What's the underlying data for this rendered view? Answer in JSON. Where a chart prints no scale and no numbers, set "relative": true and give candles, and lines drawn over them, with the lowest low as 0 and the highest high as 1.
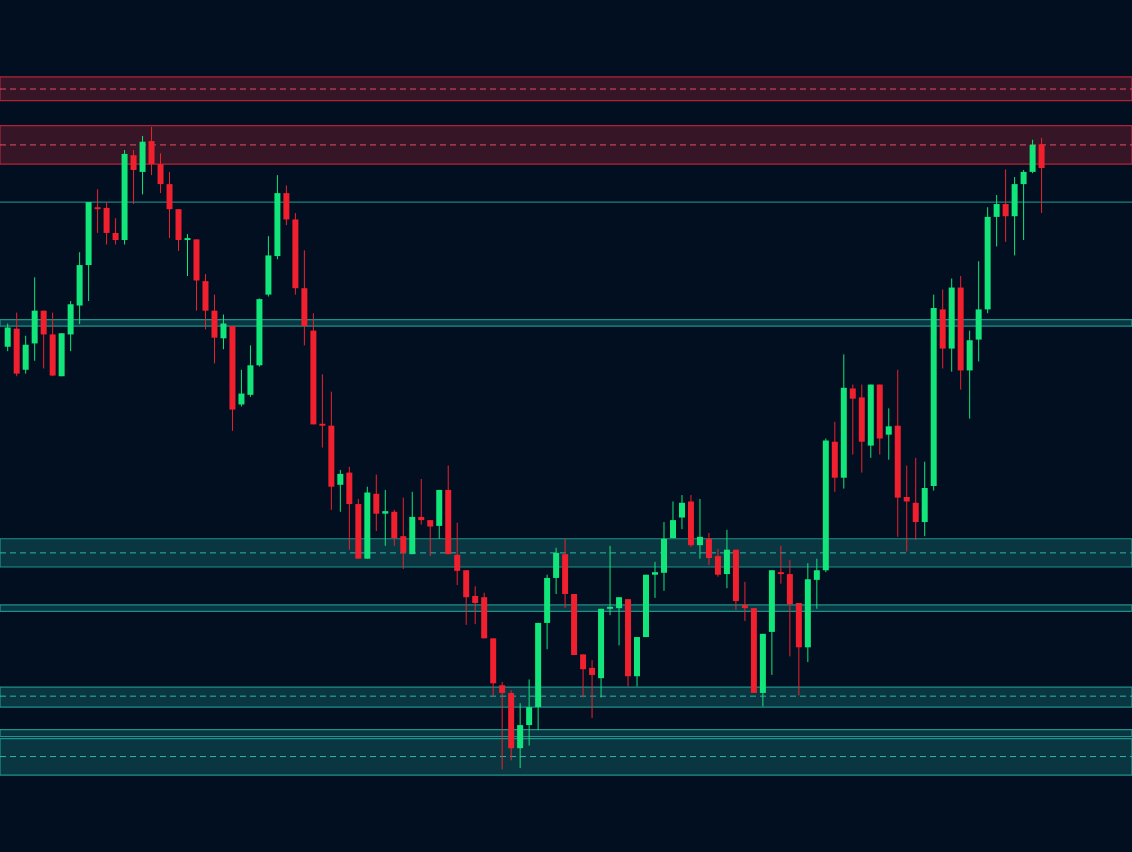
{
  "chart_data": {
    "type": "candlestick",
    "relative": true,
    "categories": [
      null,
      null,
      null,
      null,
      null,
      null,
      null,
      null,
      null,
      null,
      null,
      null,
      null,
      null,
      null,
      null,
      null,
      null,
      null,
      null,
      null,
      null,
      null,
      null,
      null,
      null,
      null,
      null,
      null,
      null,
      null,
      null,
      null,
      null,
      null,
      null,
      null,
      null,
      null,
      null,
      null,
      null,
      null,
      null,
      null,
      null,
      null,
      null,
      null,
      null,
      null,
      null,
      null,
      null,
      null,
      null,
      null,
      null,
      null,
      null,
      null,
      null,
      null,
      null,
      null,
      null,
      null,
      null,
      null,
      null,
      null,
      null,
      null,
      null,
      null,
      null,
      null,
      null,
      null,
      null,
      null,
      null,
      null,
      null,
      null,
      null,
      null,
      null,
      null,
      null,
      null,
      null,
      null,
      null,
      null,
      null,
      null,
      null,
      null,
      null,
      null,
      null,
      null,
      null,
      null,
      null,
      null,
      null,
      null,
      null,
      null,
      null,
      null,
      null,
      null,
      null
    ],
    "ohlc": [
      [
        0.658,
        0.694,
        0.651,
        0.688
      ],
      [
        0.686,
        0.711,
        0.612,
        0.616
      ],
      [
        0.622,
        0.675,
        0.616,
        0.661
      ],
      [
        0.663,
        0.766,
        0.636,
        0.714
      ],
      [
        0.714,
        0.714,
        0.624,
        0.677
      ],
      [
        0.677,
        0.711,
        0.612,
        0.613
      ],
      [
        0.612,
        0.679,
        0.612,
        0.679
      ],
      [
        0.677,
        0.729,
        0.651,
        0.724
      ],
      [
        0.722,
        0.805,
        0.693,
        0.785
      ],
      [
        0.785,
        0.883,
        0.729,
        0.883
      ],
      [
        0.875,
        0.903,
        0.835,
        0.872
      ],
      [
        0.874,
        0.883,
        0.817,
        0.835
      ],
      [
        0.835,
        0.858,
        0.817,
        0.824
      ],
      [
        0.824,
        0.964,
        0.817,
        0.958
      ],
      [
        0.956,
        0.964,
        0.88,
        0.933
      ],
      [
        0.93,
        0.986,
        0.895,
        0.977
      ],
      [
        0.978,
        1,
        0.925,
        0.942
      ],
      [
        0.942,
        0.959,
        0.897,
        0.911
      ],
      [
        0.911,
        0.93,
        0.827,
        0.872
      ],
      [
        0.872,
        0.872,
        0.807,
        0.824
      ],
      [
        0.824,
        0.833,
        0.768,
        0.827
      ],
      [
        0.825,
        0.825,
        0.714,
        0.761
      ],
      [
        0.76,
        0.771,
        0.685,
        0.714
      ],
      [
        0.714,
        0.739,
        0.632,
        0.672
      ],
      [
        0.671,
        0.708,
        0.654,
        0.694
      ],
      [
        0.69,
        0.69,
        0.527,
        0.56
      ],
      [
        0.568,
        0.622,
        0.565,
        0.585
      ],
      [
        0.583,
        0.66,
        0.58,
        0.629
      ],
      [
        0.629,
        0.733,
        0.627,
        0.732
      ],
      [
        0.739,
        0.83,
        0.736,
        0.8
      ],
      [
        0.799,
        0.925,
        0.794,
        0.897
      ],
      [
        0.897,
        0.909,
        0.847,
        0.856
      ],
      [
        0.856,
        0.866,
        0.739,
        0.749
      ],
      [
        0.749,
        0.808,
        0.66,
        0.69
      ],
      [
        0.683,
        0.71,
        0.537,
        0.537
      ],
      [
        0.538,
        0.615,
        0.501,
        0.535
      ],
      [
        0.535,
        0.588,
        0.404,
        0.44
      ],
      [
        0.443,
        0.466,
        0.401,
        0.46
      ],
      [
        0.462,
        0.471,
        0.342,
        0.413
      ],
      [
        0.413,
        0.421,
        0.328,
        0.328
      ],
      [
        0.328,
        0.44,
        0.328,
        0.431
      ],
      [
        0.429,
        0.459,
        0.371,
        0.398
      ],
      [
        0.398,
        0.435,
        0.348,
        0.402
      ],
      [
        0.401,
        0.404,
        0.348,
        0.36
      ],
      [
        0.363,
        0.423,
        0.312,
        0.337
      ],
      [
        0.335,
        0.432,
        0.335,
        0.393
      ],
      [
        0.393,
        0.452,
        0.381,
        0.388
      ],
      [
        0.388,
        0.388,
        0.332,
        0.378
      ],
      [
        0.379,
        0.435,
        0.359,
        0.435
      ],
      [
        0.435,
        0.473,
        0.335,
        0.335
      ],
      [
        0.334,
        0.384,
        0.287,
        0.309
      ],
      [
        0.31,
        0.31,
        0.225,
        0.268
      ],
      [
        0.27,
        0.285,
        0.226,
        0.259
      ],
      [
        0.268,
        0.275,
        0.204,
        0.204
      ],
      [
        0.204,
        0.204,
        0.114,
        0.134
      ],
      [
        0.131,
        0.136,
        0,
        0.119
      ],
      [
        0.119,
        0.123,
        0.014,
        0.033
      ],
      [
        0.033,
        0.103,
        0.002,
        0.069
      ],
      [
        0.069,
        0.14,
        0.037,
        0.097
      ],
      [
        0.097,
        0.228,
        0.061,
        0.228
      ],
      [
        0.228,
        0.303,
        0.187,
        0.298
      ],
      [
        0.298,
        0.345,
        0.273,
        0.337
      ],
      [
        0.335,
        0.359,
        0.251,
        0.273
      ],
      [
        0.273,
        0.273,
        0.178,
        0.178
      ],
      [
        0.179,
        0.179,
        0.112,
        0.156
      ],
      [
        0.158,
        0.17,
        0.08,
        0.147
      ],
      [
        0.142,
        0.25,
        0.112,
        0.25
      ],
      [
        0.25,
        0.348,
        0.24,
        0.253
      ],
      [
        0.251,
        0.268,
        0.193,
        0.268
      ],
      [
        0.265,
        0.265,
        0.129,
        0.145
      ],
      [
        0.145,
        0.206,
        0.129,
        0.206
      ],
      [
        0.206,
        0.303,
        0.206,
        0.303
      ],
      [
        0.303,
        0.323,
        0.267,
        0.307
      ],
      [
        0.306,
        0.385,
        0.278,
        0.359
      ],
      [
        0.36,
        0.417,
        0.36,
        0.388
      ],
      [
        0.392,
        0.427,
        0.374,
        0.415
      ],
      [
        0.417,
        0.427,
        0.346,
        0.349
      ],
      [
        0.349,
        0.421,
        0.328,
        0.362
      ],
      [
        0.359,
        0.368,
        0.318,
        0.329
      ],
      [
        0.332,
        0.343,
        0.3,
        0.303
      ],
      [
        0.304,
        0.373,
        0.282,
        0.342
      ],
      [
        0.342,
        0.342,
        0.248,
        0.262
      ],
      [
        0.256,
        0.292,
        0.231,
        0.251
      ],
      [
        0.251,
        0.251,
        0.119,
        0.119
      ],
      [
        0.119,
        0.211,
        0.098,
        0.211
      ],
      [
        0.214,
        0.31,
        0.147,
        0.31
      ],
      [
        0.307,
        0.348,
        0.289,
        0.304
      ],
      [
        0.304,
        0.326,
        0.176,
        0.257
      ],
      [
        0.259,
        0.259,
        0.115,
        0.19
      ],
      [
        0.19,
        0.321,
        0.167,
        0.296
      ],
      [
        0.295,
        0.328,
        0.25,
        0.31
      ],
      [
        0.31,
        0.515,
        0.307,
        0.512
      ],
      [
        0.51,
        0.541,
        0.432,
        0.454
      ],
      [
        0.454,
        0.646,
        0.437,
        0.594
      ],
      [
        0.593,
        0.599,
        0.49,
        0.577
      ],
      [
        0.579,
        0.599,
        0.462,
        0.51
      ],
      [
        0.504,
        0.599,
        0.485,
        0.599
      ],
      [
        0.599,
        0.599,
        0.49,
        0.515
      ],
      [
        0.521,
        0.562,
        0.482,
        0.534
      ],
      [
        0.535,
        0.622,
        0.362,
        0.423
      ],
      [
        0.424,
        0.473,
        0.339,
        0.417
      ],
      [
        0.415,
        0.485,
        0.357,
        0.385
      ],
      [
        0.385,
        0.479,
        0.363,
        0.438
      ],
      [
        0.441,
        0.739,
        0.434,
        0.718
      ],
      [
        0.716,
        0.747,
        0.624,
        0.655
      ],
      [
        0.655,
        0.764,
        0.619,
        0.75
      ],
      [
        0.75,
        0.768,
        0.591,
        0.621
      ],
      [
        0.621,
        0.683,
        0.546,
        0.668
      ],
      [
        0.669,
        0.791,
        0.635,
        0.716
      ],
      [
        0.716,
        0.875,
        0.71,
        0.86
      ],
      [
        0.86,
        0.894,
        0.814,
        0.88
      ],
      [
        0.88,
        0.934,
        0.821,
        0.861
      ],
      [
        0.861,
        0.922,
        0.8,
        0.911
      ],
      [
        0.911,
        0.933,
        0.824,
        0.93
      ],
      [
        0.93,
        0.98,
        0.928,
        0.972
      ],
      [
        0.973,
        0.983,
        0.866,
        0.936
      ]
    ],
    "bands": [
      {
        "axis": "y",
        "from": 1.041,
        "to": 1.078,
        "color": "#c2263a"
      },
      {
        "axis": "y",
        "from": 0.942,
        "to": 1.002,
        "color": "#c2263a"
      },
      {
        "axis": "y",
        "from": 0.69,
        "to": 0.7,
        "color": "#1f9e96"
      },
      {
        "axis": "y",
        "from": 0.315,
        "to": 0.359,
        "color": "#1f9e96"
      },
      {
        "axis": "y",
        "from": 0.246,
        "to": 0.256,
        "color": "#1f9e96"
      },
      {
        "axis": "y",
        "from": 0.097,
        "to": 0.128,
        "color": "#1f9e96"
      },
      {
        "axis": "y",
        "from": 0.051,
        "to": 0.062,
        "color": "#1f9e96"
      },
      {
        "axis": "y",
        "from": -0.009,
        "to": 0.048,
        "color": "#1f9e96"
      }
    ],
    "ref_lines": [
      {
        "axis": "y",
        "value": 1.059,
        "color": "#e0505e",
        "line_style": "dashed"
      },
      {
        "axis": "y",
        "value": 0.972,
        "color": "#e0505e",
        "line_style": "dashed"
      },
      {
        "axis": "y",
        "value": 0.883,
        "color": "#1f9e96",
        "line_style": "solid"
      },
      {
        "axis": "y",
        "value": 0.337,
        "color": "#2fb5aa",
        "line_style": "dashed"
      },
      {
        "axis": "y",
        "value": 0.114,
        "color": "#2fb5aa",
        "line_style": "dashed"
      },
      {
        "axis": "y",
        "value": 0.02,
        "color": "#2fb5aa",
        "line_style": "dashed"
      }
    ]
  }
}
